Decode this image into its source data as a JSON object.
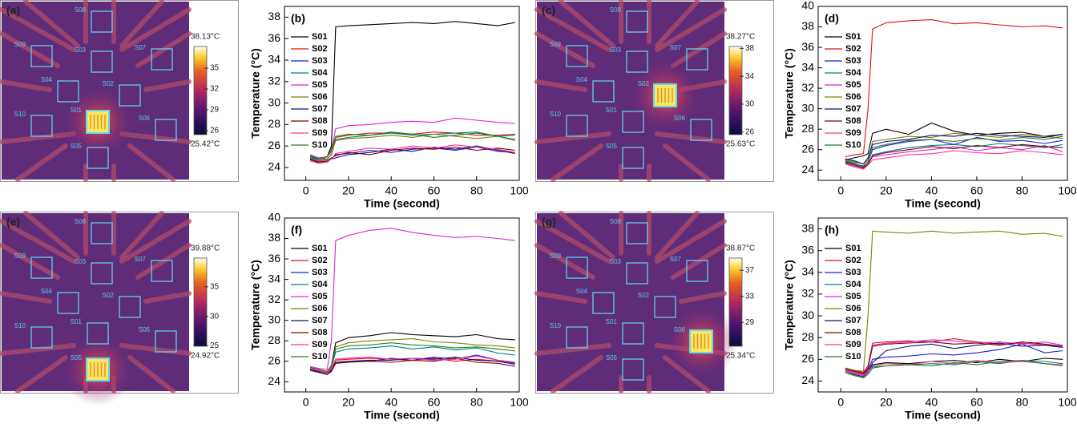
{
  "chart_data": [
    {
      "type": "thermal",
      "panel": "(a)",
      "sensors": [
        "S08",
        "S09",
        "S03",
        "S07",
        "S04",
        "S02",
        "S01",
        "S10",
        "S06",
        "S05"
      ],
      "clim": [
        {
          "value": 25.42,
          "label": "25.42°C"
        },
        {
          "value": 38.13,
          "label": "38.13°C"
        }
      ],
      "cticks": [
        26,
        29,
        32,
        35
      ]
    },
    {
      "type": "line",
      "panel": "(b)",
      "xlabel": "Time (second)",
      "ylabel": "Temperature (°C)",
      "x": [
        2,
        6,
        10,
        12,
        14,
        20,
        30,
        40,
        50,
        60,
        70,
        80,
        90,
        98
      ],
      "xlim": [
        -10,
        100
      ],
      "xticks": [
        0,
        20,
        40,
        60,
        80,
        100
      ],
      "ylim": [
        22.8,
        39
      ],
      "yticks": [
        24,
        26,
        28,
        30,
        32,
        34,
        36,
        38
      ],
      "series": [
        {
          "name": "S01",
          "color": "#000000",
          "values": [
            25,
            24.8,
            25,
            26,
            37.1,
            37.2,
            37.3,
            37.4,
            37.5,
            37.4,
            37.6,
            37.4,
            37.2,
            37.5
          ]
        },
        {
          "name": "S02",
          "color": "#e01010",
          "values": [
            25,
            24.6,
            25,
            25.5,
            26.8,
            27,
            27.2,
            27.2,
            27.1,
            27.3,
            27.2,
            27,
            27,
            27.1
          ]
        },
        {
          "name": "S03",
          "color": "#1a1ae0",
          "values": [
            24.8,
            24.5,
            24.6,
            24.8,
            25.2,
            25.3,
            25.6,
            25.4,
            25.7,
            25.8,
            25.6,
            25.9,
            25.5,
            25.4
          ]
        },
        {
          "name": "S04",
          "color": "#008080",
          "values": [
            25,
            24.7,
            24.8,
            25.2,
            26.6,
            26.8,
            27,
            27.2,
            27,
            27.1,
            27.2,
            27.3,
            26.9,
            27
          ]
        },
        {
          "name": "S05",
          "color": "#e020e0",
          "values": [
            25.2,
            24.9,
            25,
            25.6,
            27.6,
            27.9,
            28,
            28.2,
            28.3,
            28.2,
            28.6,
            28.4,
            28.2,
            28.1
          ]
        },
        {
          "name": "S06",
          "color": "#808000",
          "values": [
            24.9,
            24.6,
            24.7,
            25.3,
            26.5,
            26.7,
            26.8,
            27,
            26.8,
            27.1,
            26.9,
            26.7,
            26.9,
            26.5
          ]
        },
        {
          "name": "S07",
          "color": "#101080",
          "values": [
            24.8,
            24.4,
            24.5,
            24.8,
            24.9,
            25.2,
            25.4,
            25.7,
            25.5,
            25.9,
            25.7,
            26,
            25.6,
            25.3
          ]
        },
        {
          "name": "S08",
          "color": "#800000",
          "values": [
            24.7,
            24.5,
            24.6,
            24.9,
            25.1,
            25.4,
            25.2,
            25.6,
            25.8,
            25.7,
            25.9,
            25.6,
            25.8,
            25.6
          ]
        },
        {
          "name": "S09",
          "color": "#ff3090",
          "values": [
            24.6,
            24.4,
            24.5,
            24.8,
            25.3,
            25.5,
            25.8,
            25.7,
            26,
            25.8,
            26.1,
            25.9,
            25.7,
            25.4
          ]
        },
        {
          "name": "S10",
          "color": "#208020",
          "values": [
            25.1,
            24.8,
            25,
            25.7,
            26.9,
            27.1,
            27,
            27.3,
            27.1,
            26.8,
            27,
            27.2,
            26.9,
            26.6
          ]
        }
      ]
    },
    {
      "type": "thermal",
      "panel": "(c)",
      "sensors": [
        "S08",
        "S09",
        "S03",
        "S07",
        "S04",
        "S02",
        "S01",
        "S10",
        "S06",
        "S05"
      ],
      "clim": [
        {
          "value": 25.63,
          "label": "25.63°C"
        },
        {
          "value": 38.27,
          "label": "38.27°C"
        }
      ],
      "cticks": [
        26,
        30,
        34,
        38
      ]
    },
    {
      "type": "line",
      "panel": "(d)",
      "xlabel": "Time (second)",
      "ylabel": "Temperature (°C)",
      "x": [
        2,
        6,
        10,
        12,
        14,
        20,
        30,
        40,
        50,
        60,
        70,
        80,
        90,
        98
      ],
      "xlim": [
        -10,
        100
      ],
      "xticks": [
        0,
        20,
        40,
        60,
        80,
        100
      ],
      "ylim": [
        23,
        40
      ],
      "yticks": [
        24,
        26,
        28,
        30,
        32,
        34,
        36,
        38,
        40
      ],
      "series": [
        {
          "name": "S01",
          "color": "#000000",
          "values": [
            25,
            25.2,
            25.4,
            25.6,
            27.6,
            28,
            27.5,
            28.6,
            27.8,
            27.4,
            27.6,
            27.7,
            27.3,
            27.5
          ]
        },
        {
          "name": "S02",
          "color": "#e01010",
          "values": [
            25.3,
            25.5,
            25.6,
            30,
            37.8,
            38.4,
            38.6,
            38.7,
            38.3,
            38.4,
            38.2,
            38,
            38.1,
            37.9
          ]
        },
        {
          "name": "S03",
          "color": "#1a1ae0",
          "values": [
            24.8,
            24.6,
            24.4,
            24.8,
            26,
            26.4,
            26.8,
            27,
            26.5,
            27.2,
            26.8,
            26.9,
            26.6,
            26.9
          ]
        },
        {
          "name": "S04",
          "color": "#008080",
          "values": [
            24.9,
            24.6,
            24.3,
            24.5,
            25.5,
            25.8,
            26.2,
            26.4,
            26.5,
            26.3,
            26.6,
            26.4,
            26.2,
            26.5
          ]
        },
        {
          "name": "S05",
          "color": "#e020e0",
          "values": [
            24.6,
            24.4,
            24.2,
            24.6,
            25.3,
            25.5,
            25.8,
            26,
            26.3,
            25.9,
            26.2,
            26,
            26.4,
            25.8
          ]
        },
        {
          "name": "S06",
          "color": "#808000",
          "values": [
            25,
            24.8,
            24.6,
            25,
            26.8,
            27,
            27.3,
            27.2,
            27.6,
            27.4,
            27.2,
            27.5,
            27.3,
            27.1
          ]
        },
        {
          "name": "S07",
          "color": "#101080",
          "values": [
            25.1,
            24.9,
            24.6,
            25.2,
            26.5,
            26.8,
            27,
            27.4,
            27.3,
            27.6,
            27.4,
            27.3,
            27.2,
            27.5
          ]
        },
        {
          "name": "S08",
          "color": "#800000",
          "values": [
            24.7,
            24.5,
            24.2,
            24.6,
            25.4,
            25.7,
            26,
            26.3,
            26.1,
            26.4,
            26.2,
            26.5,
            26.3,
            26.2
          ]
        },
        {
          "name": "S09",
          "color": "#ff3090",
          "values": [
            24.6,
            24.3,
            24.1,
            24.5,
            25,
            25.2,
            25.5,
            25.6,
            25.9,
            25.7,
            25.6,
            25.9,
            25.7,
            25.5
          ]
        },
        {
          "name": "S10",
          "color": "#208020",
          "values": [
            24.9,
            24.7,
            24.3,
            24.8,
            26.2,
            26.5,
            26.9,
            27,
            26.8,
            27.1,
            26.9,
            27.2,
            27,
            27.3
          ]
        }
      ]
    },
    {
      "type": "thermal",
      "panel": "(e)",
      "sensors": [
        "S08",
        "S09",
        "S03",
        "S07",
        "S04",
        "S02",
        "S01",
        "S10",
        "S06",
        "S05"
      ],
      "clim": [
        {
          "value": 24.92,
          "label": "24.92°C"
        },
        {
          "value": 39.88,
          "label": "39.88°C"
        }
      ],
      "cticks": [
        25,
        30,
        35
      ]
    },
    {
      "type": "line",
      "panel": "(f)",
      "xlabel": "Time (second)",
      "ylabel": "Temperature (°C)",
      "x": [
        2,
        6,
        10,
        12,
        14,
        20,
        30,
        40,
        50,
        60,
        70,
        80,
        90,
        98
      ],
      "xlim": [
        -10,
        100
      ],
      "xticks": [
        0,
        20,
        40,
        60,
        80,
        100
      ],
      "ylim": [
        23,
        40
      ],
      "yticks": [
        24,
        26,
        28,
        30,
        32,
        34,
        36,
        38,
        40
      ],
      "series": [
        {
          "name": "S01",
          "color": "#000000",
          "values": [
            25.4,
            25.2,
            25,
            25.6,
            27.8,
            28.3,
            28.5,
            28.8,
            28.6,
            28.5,
            28.4,
            28.6,
            28.2,
            28.1
          ]
        },
        {
          "name": "S02",
          "color": "#e01010",
          "values": [
            25.2,
            25,
            24.8,
            25.2,
            26.1,
            26.2,
            26.3,
            26.2,
            26.1,
            26.3,
            26,
            26.2,
            26,
            25.9
          ]
        },
        {
          "name": "S03",
          "color": "#1a1ae0",
          "values": [
            25.1,
            24.9,
            24.7,
            25,
            25.8,
            26,
            26,
            26.3,
            26.1,
            26.4,
            26.2,
            26.6,
            26.1,
            25.8
          ]
        },
        {
          "name": "S04",
          "color": "#008080",
          "values": [
            25.3,
            25.1,
            24.9,
            25.4,
            26.9,
            27.2,
            27.3,
            27.5,
            27.2,
            27.4,
            27.1,
            27.3,
            26.8,
            26.6
          ]
        },
        {
          "name": "S05",
          "color": "#e020e0",
          "values": [
            25.5,
            25.3,
            25.2,
            28,
            37.8,
            38.3,
            38.8,
            39,
            38.6,
            38.3,
            38.1,
            38.2,
            38,
            37.8
          ]
        },
        {
          "name": "S06",
          "color": "#808000",
          "values": [
            25.3,
            25.1,
            24.9,
            25.5,
            27.4,
            27.8,
            28,
            28.1,
            28.2,
            27.9,
            27.8,
            27.6,
            27.5,
            27.3
          ]
        },
        {
          "name": "S07",
          "color": "#101080",
          "values": [
            25.2,
            25,
            24.8,
            25.1,
            25.9,
            26,
            26.1,
            26.1,
            26.3,
            26.2,
            26.4,
            26.1,
            26,
            25.7
          ]
        },
        {
          "name": "S08",
          "color": "#800000",
          "values": [
            25.2,
            25,
            24.7,
            25.1,
            25.8,
            25.9,
            26,
            25.9,
            26.1,
            26,
            26.3,
            25.9,
            25.8,
            25.5
          ]
        },
        {
          "name": "S09",
          "color": "#ff3090",
          "values": [
            25.3,
            25.1,
            24.8,
            25.3,
            26.2,
            26.3,
            26.4,
            26.2,
            26.3,
            26.1,
            26.2,
            26.5,
            26.1,
            25.9
          ]
        },
        {
          "name": "S10",
          "color": "#208020",
          "values": [
            25.4,
            25.2,
            25,
            25.6,
            27.2,
            27.5,
            27.6,
            27.8,
            27.6,
            27.5,
            27.3,
            27.4,
            27.2,
            27
          ]
        }
      ]
    },
    {
      "type": "thermal",
      "panel": "(g)",
      "sensors": [
        "S08",
        "S09",
        "S03",
        "S07",
        "S04",
        "S02",
        "S01",
        "S10",
        "S06",
        "S05"
      ],
      "clim": [
        {
          "value": 25.34,
          "label": "25.34°C"
        },
        {
          "value": 38.87,
          "label": "38.87°C"
        }
      ],
      "cticks": [
        29,
        33,
        37
      ]
    },
    {
      "type": "line",
      "panel": "(h)",
      "xlabel": "Time (second)",
      "ylabel": "Temperature (°C)",
      "x": [
        2,
        6,
        10,
        12,
        14,
        20,
        30,
        40,
        50,
        60,
        70,
        80,
        90,
        98
      ],
      "xlim": [
        -10,
        100
      ],
      "xticks": [
        0,
        20,
        40,
        60,
        80,
        100
      ],
      "ylim": [
        23,
        39
      ],
      "yticks": [
        24,
        26,
        28,
        30,
        32,
        34,
        36,
        38
      ],
      "series": [
        {
          "name": "S01",
          "color": "#000000",
          "values": [
            25,
            24.8,
            24.6,
            25,
            25.5,
            25.7,
            25.6,
            25.8,
            25.9,
            25.7,
            26,
            25.8,
            26.1,
            26
          ]
        },
        {
          "name": "S02",
          "color": "#e01010",
          "values": [
            25.2,
            25,
            24.8,
            25.4,
            27.5,
            27.6,
            27.7,
            27.6,
            27.9,
            27.6,
            27.4,
            27.5,
            27.3,
            27.2
          ]
        },
        {
          "name": "S03",
          "color": "#1a1ae0",
          "values": [
            25.1,
            24.9,
            24.7,
            25,
            26,
            26.2,
            26.3,
            26.5,
            26.4,
            26.6,
            26.9,
            27.4,
            26.6,
            26.8
          ]
        },
        {
          "name": "S04",
          "color": "#008080",
          "values": [
            24.9,
            24.7,
            24.5,
            24.9,
            25.3,
            25.4,
            25.5,
            25.6,
            25.5,
            25.8,
            25.6,
            25.9,
            25.8,
            25.6
          ]
        },
        {
          "name": "S05",
          "color": "#e020e0",
          "values": [
            25,
            24.8,
            24.6,
            25.2,
            27.3,
            27.5,
            27.6,
            27.8,
            27.7,
            27.5,
            27.6,
            27.4,
            27.6,
            27.3
          ]
        },
        {
          "name": "S06",
          "color": "#808000",
          "values": [
            25.2,
            25,
            24.9,
            30,
            37.8,
            37.7,
            37.6,
            37.8,
            37.6,
            37.7,
            37.8,
            37.5,
            37.6,
            37.3
          ]
        },
        {
          "name": "S07",
          "color": "#101080",
          "values": [
            24.8,
            24.6,
            24.4,
            24.8,
            25.7,
            26.8,
            27.2,
            27.4,
            27,
            27.3,
            27.5,
            27.2,
            27.3,
            27.1
          ]
        },
        {
          "name": "S08",
          "color": "#800000",
          "values": [
            25.1,
            24.9,
            24.7,
            25.2,
            27.2,
            27.4,
            27.5,
            27.6,
            27.4,
            27.5,
            27.3,
            27.6,
            27.4,
            27.2
          ]
        },
        {
          "name": "S09",
          "color": "#ff3090",
          "values": [
            24.9,
            24.7,
            24.5,
            24.9,
            25.4,
            25.6,
            25.5,
            25.8,
            25.6,
            25.9,
            25.7,
            25.8,
            25.6,
            25.5
          ]
        },
        {
          "name": "S10",
          "color": "#208020",
          "values": [
            24.8,
            24.5,
            24.3,
            24.6,
            25.2,
            25.4,
            25.5,
            25.4,
            25.7,
            25.5,
            25.8,
            25.9,
            25.6,
            25.4
          ]
        }
      ]
    }
  ]
}
